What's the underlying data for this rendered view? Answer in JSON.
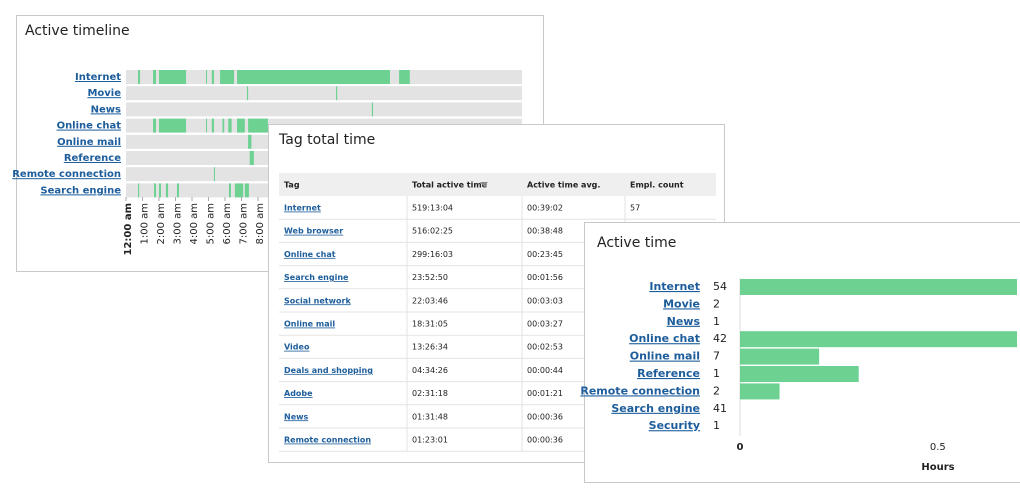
{
  "timeline": {
    "title": "Active timeline",
    "xlim": [
      0,
      24
    ],
    "xticks": [
      {
        "value": 0,
        "label": "12:00 am"
      },
      {
        "value": 1,
        "label": "1:00 am"
      },
      {
        "value": 2,
        "label": "2:00 am"
      },
      {
        "value": 3,
        "label": "3:00 am"
      },
      {
        "value": 4,
        "label": "4:00 am"
      },
      {
        "value": 5,
        "label": "5:00 am"
      },
      {
        "value": 6,
        "label": "6:00 am"
      },
      {
        "value": 7,
        "label": "7:00 am"
      },
      {
        "value": 8,
        "label": "8:00 am"
      }
    ],
    "color": "#6dd192",
    "rows": [
      {
        "label": "Internet",
        "segments": [
          [
            0.73,
            0.85
          ],
          [
            1.64,
            1.82
          ],
          [
            2.0,
            3.64
          ],
          [
            4.85,
            4.9
          ],
          [
            5.2,
            5.33
          ],
          [
            5.7,
            6.55
          ],
          [
            6.73,
            16.0
          ],
          [
            16.55,
            17.2
          ]
        ]
      },
      {
        "label": "Movie",
        "segments": [
          [
            7.33,
            7.4
          ],
          [
            12.73,
            12.8
          ]
        ]
      },
      {
        "label": "News",
        "segments": [
          [
            14.9,
            14.97
          ]
        ]
      },
      {
        "label": "Online chat",
        "segments": [
          [
            1.64,
            1.82
          ],
          [
            2.0,
            3.64
          ],
          [
            4.85,
            4.9
          ],
          [
            5.2,
            5.33
          ],
          [
            5.85,
            5.95
          ],
          [
            6.2,
            6.4
          ],
          [
            6.73,
            7.2
          ],
          [
            7.4,
            8.6
          ]
        ]
      },
      {
        "label": "Online mail",
        "segments": [
          [
            7.4,
            7.6
          ]
        ]
      },
      {
        "label": "Reference",
        "segments": [
          [
            7.5,
            7.75
          ]
        ]
      },
      {
        "label": "Remote connection",
        "segments": [
          [
            5.33,
            5.39
          ]
        ]
      },
      {
        "label": "Search engine",
        "segments": [
          [
            0.73,
            0.8
          ],
          [
            1.7,
            1.82
          ],
          [
            2.0,
            2.12
          ],
          [
            2.42,
            2.55
          ],
          [
            3.09,
            3.21
          ],
          [
            6.24,
            6.36
          ],
          [
            6.6,
            7.1
          ],
          [
            7.2,
            7.45
          ]
        ]
      }
    ]
  },
  "tag_table": {
    "title": "Tag total time",
    "columns": [
      "Tag",
      "Total active time",
      "Active time avg.",
      "Empl. count"
    ],
    "rows": [
      [
        "Internet",
        "519:13:04",
        "00:39:02",
        "57"
      ],
      [
        "Web browser",
        "516:02:25",
        "00:38:48"
      ],
      [
        "Online chat",
        "299:16:03",
        "00:23:45"
      ],
      [
        "Search engine",
        "23:52:50",
        "00:01:56"
      ],
      [
        "Social network",
        "22:03:46",
        "00:03:03"
      ],
      [
        "Online mail",
        "18:31:05",
        "00:03:27"
      ],
      [
        "Video",
        "13:26:34",
        "00:02:53"
      ],
      [
        "Deals and shopping",
        "04:34:26",
        "00:00:44"
      ],
      [
        "Adobe",
        "02:31:18",
        "00:01:21"
      ],
      [
        "News",
        "01:31:48",
        "00:00:36"
      ],
      [
        "Remote connection",
        "01:23:01",
        "00:00:36"
      ]
    ]
  },
  "active_time": {
    "title": "Active time",
    "type": "bar",
    "categories": [
      "Internet",
      "Movie",
      "News",
      "Online chat",
      "Online mail",
      "Reference",
      "Remote connection",
      "Search engine",
      "Security"
    ],
    "counts": [
      54,
      2,
      1,
      42,
      7,
      1,
      2,
      41,
      1
    ],
    "values": [
      0.7,
      0,
      0,
      0.7,
      0.2,
      0.3,
      0.1,
      0,
      0
    ],
    "color": "#6dd192",
    "xlim": [
      0,
      0.7
    ],
    "xticks": [
      0,
      0.5
    ],
    "xlabel": "Hours"
  }
}
